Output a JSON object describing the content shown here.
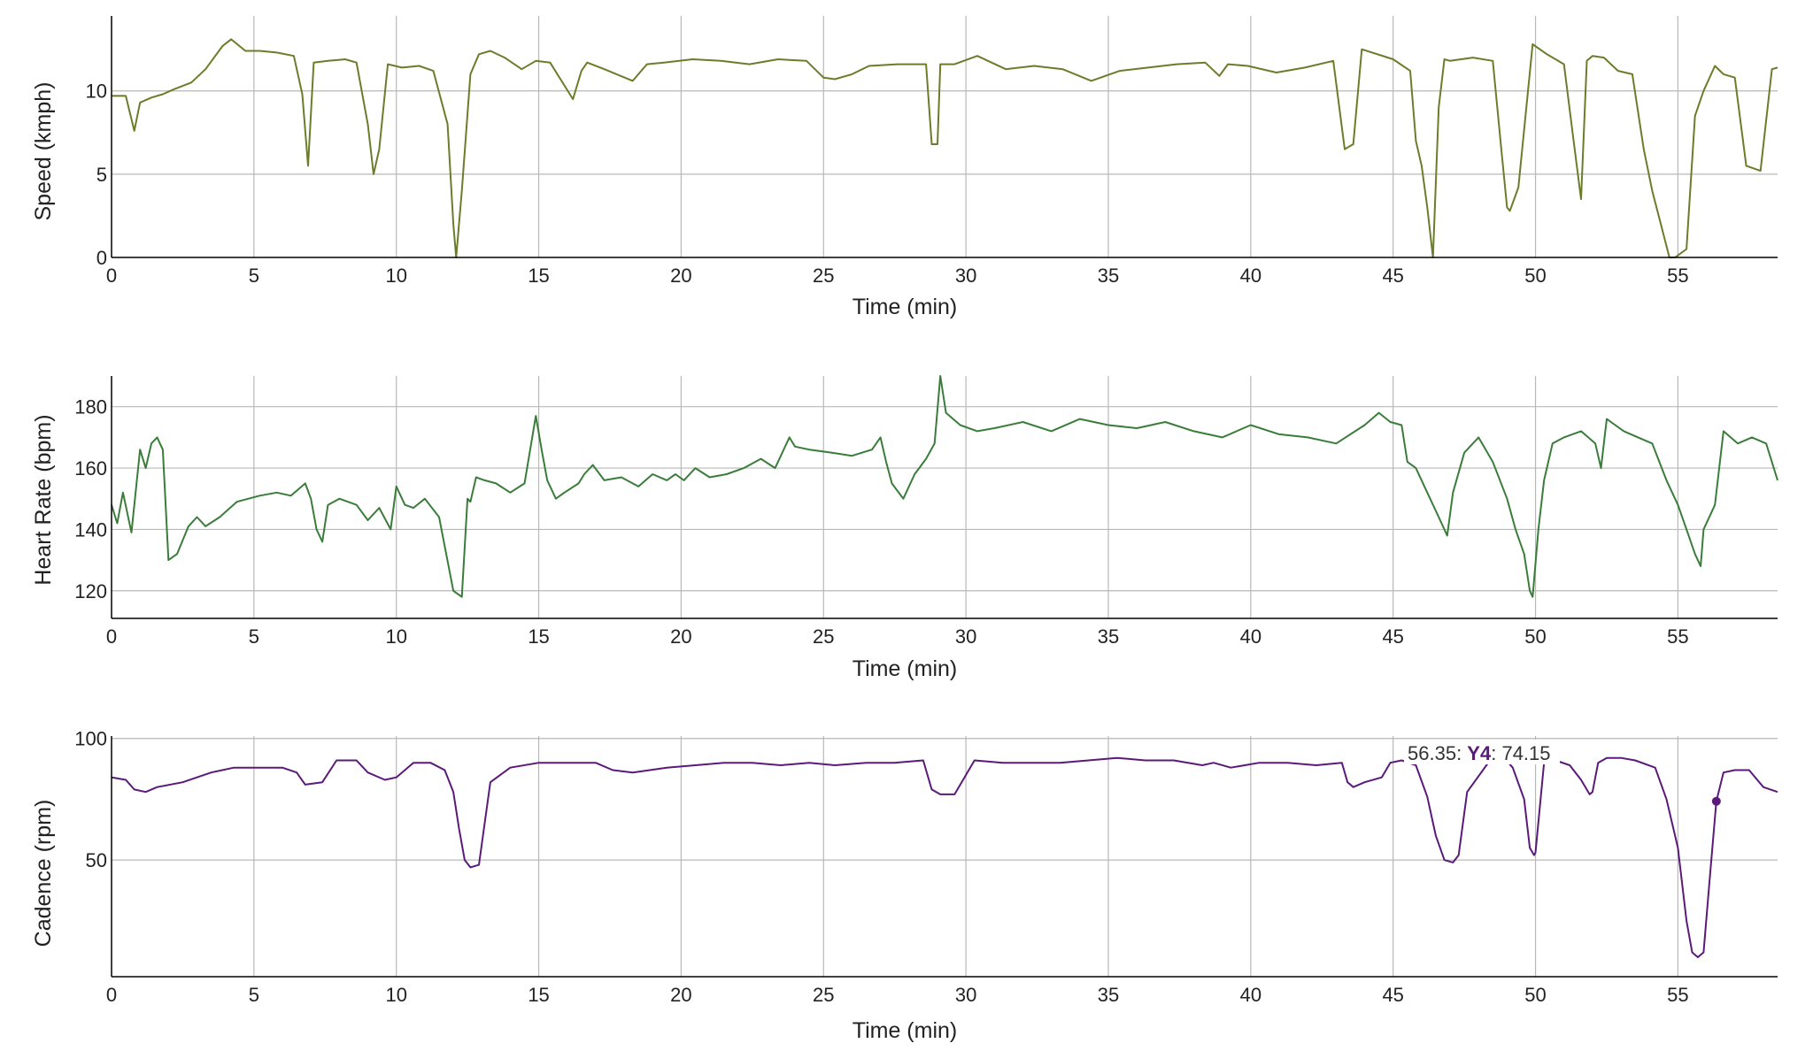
{
  "chart_data": [
    {
      "type": "line",
      "xlabel": "Time (min)",
      "ylabel": "Speed (kmph)",
      "xlim": [
        0,
        58.5
      ],
      "ylim": [
        0,
        14.5
      ],
      "x_ticks": [
        "0",
        "5",
        "10",
        "15",
        "20",
        "25",
        "30",
        "35",
        "40",
        "45",
        "50",
        "55"
      ],
      "y_ticks": [
        {
          "v": 0,
          "label": "0"
        },
        {
          "v": 5,
          "label": "5"
        },
        {
          "v": 10,
          "label": "10"
        }
      ],
      "grid": true,
      "color": "#6b7c2a",
      "series": [
        {
          "x": [
            0,
            0.5,
            0.8,
            1.0,
            1.4,
            1.8,
            2.2,
            2.8,
            3.3,
            3.9,
            4.2,
            4.7,
            5.2,
            5.8,
            6.4,
            6.7,
            6.9,
            7.1,
            7.6,
            8.2,
            8.6,
            9.0,
            9.2,
            9.4,
            9.7,
            10.2,
            10.8,
            11.3,
            11.8,
            12.0,
            12.1,
            12.3,
            12.6,
            12.9,
            13.3,
            13.8,
            14.4,
            14.9,
            15.4,
            16.2,
            16.5,
            16.7,
            17.3,
            18.3,
            18.8,
            19.4,
            20.4,
            21.4,
            22.4,
            23.4,
            24.4,
            25.0,
            25.4,
            26.0,
            26.6,
            27.6,
            28.6,
            28.8,
            29.0,
            29.1,
            29.6,
            30.4,
            31.4,
            32.4,
            33.4,
            34.4,
            35.4,
            36.4,
            37.4,
            38.4,
            38.9,
            39.2,
            39.9,
            40.9,
            41.9,
            42.9,
            43.3,
            43.6,
            43.9,
            45.0,
            45.6,
            45.8,
            46.0,
            46.2,
            46.4,
            46.6,
            46.8,
            47.0,
            47.8,
            48.5,
            48.8,
            49.0,
            49.1,
            49.4,
            49.9,
            50.4,
            51.0,
            51.3,
            51.6,
            51.8,
            52.0,
            52.4,
            52.9,
            53.4,
            53.8,
            54.1,
            54.4,
            54.7,
            54.9,
            55.3,
            55.6,
            55.9,
            56.3,
            56.6,
            57.0,
            57.4,
            57.9,
            58.3,
            58.5
          ],
          "y": [
            9.7,
            9.7,
            7.6,
            9.3,
            9.6,
            9.8,
            10.1,
            10.5,
            11.3,
            12.7,
            13.1,
            12.4,
            12.4,
            12.3,
            12.1,
            9.8,
            5.5,
            11.7,
            11.8,
            11.9,
            11.7,
            8.0,
            5.0,
            6.5,
            11.6,
            11.4,
            11.5,
            11.2,
            8.0,
            2.0,
            0.0,
            4.0,
            11.0,
            12.2,
            12.4,
            12.0,
            11.3,
            11.8,
            11.7,
            9.5,
            11.2,
            11.7,
            11.3,
            10.6,
            11.6,
            11.7,
            11.9,
            11.8,
            11.6,
            11.9,
            11.8,
            10.8,
            10.7,
            11.0,
            11.5,
            11.6,
            11.6,
            6.8,
            6.8,
            11.6,
            11.6,
            12.1,
            11.3,
            11.5,
            11.3,
            10.6,
            11.2,
            11.4,
            11.6,
            11.7,
            10.9,
            11.6,
            11.5,
            11.1,
            11.4,
            11.8,
            6.5,
            6.8,
            12.5,
            11.9,
            11.2,
            7.0,
            5.5,
            3.0,
            0.0,
            9.0,
            11.9,
            11.8,
            12.0,
            11.8,
            6.5,
            3.0,
            2.8,
            4.2,
            12.8,
            12.2,
            11.6,
            7.5,
            3.5,
            11.8,
            12.1,
            12.0,
            11.2,
            11.0,
            6.5,
            4.0,
            2.0,
            0.0,
            0.0,
            0.5,
            8.5,
            10.0,
            11.5,
            11.0,
            10.8,
            5.5,
            5.2,
            11.3,
            11.4
          ]
        }
      ]
    },
    {
      "type": "line",
      "xlabel": "Time (min)",
      "ylabel": "Heart Rate (bpm)",
      "xlim": [
        0,
        58.5
      ],
      "ylim": [
        111,
        190
      ],
      "x_ticks": [
        "0",
        "5",
        "10",
        "15",
        "20",
        "25",
        "30",
        "35",
        "40",
        "45",
        "50",
        "55"
      ],
      "y_ticks": [
        {
          "v": 120,
          "label": "120"
        },
        {
          "v": 140,
          "label": "140"
        },
        {
          "v": 160,
          "label": "160"
        },
        {
          "v": 180,
          "label": "180"
        }
      ],
      "grid": true,
      "color": "#3a7d3a",
      "series": [
        {
          "x": [
            0,
            0.2,
            0.4,
            0.7,
            1.0,
            1.2,
            1.4,
            1.6,
            1.8,
            2.0,
            2.3,
            2.7,
            3.0,
            3.3,
            3.8,
            4.4,
            5.2,
            5.8,
            6.3,
            6.8,
            7.0,
            7.2,
            7.4,
            7.6,
            8.0,
            8.6,
            9.0,
            9.4,
            9.8,
            10.0,
            10.3,
            10.6,
            11.0,
            11.5,
            12.0,
            12.3,
            12.5,
            12.6,
            12.8,
            13.1,
            13.5,
            14.0,
            14.5,
            14.9,
            15.1,
            15.3,
            15.6,
            15.9,
            16.4,
            16.6,
            16.9,
            17.3,
            17.9,
            18.5,
            19.0,
            19.5,
            19.8,
            20.1,
            20.5,
            21.0,
            21.6,
            22.2,
            22.8,
            23.3,
            23.8,
            24.0,
            24.5,
            25.3,
            26.0,
            26.7,
            27.0,
            27.2,
            27.4,
            27.8,
            28.2,
            28.6,
            28.9,
            29.1,
            29.3,
            29.8,
            30.4,
            31.0,
            32.0,
            33.0,
            34.0,
            35.0,
            36.0,
            37.0,
            38.0,
            39.0,
            40.0,
            41.0,
            42.0,
            43.0,
            44.0,
            44.5,
            44.9,
            45.3,
            45.5,
            45.8,
            46.2,
            46.6,
            46.9,
            47.1,
            47.5,
            48.0,
            48.5,
            49.0,
            49.3,
            49.6,
            49.8,
            49.9,
            50.1,
            50.3,
            50.6,
            51.0,
            51.6,
            52.1,
            52.3,
            52.5,
            52.8,
            53.1,
            53.6,
            54.1,
            54.6,
            55.0,
            55.3,
            55.6,
            55.8,
            55.9,
            56.3,
            56.6,
            57.1,
            57.6,
            58.1,
            58.5
          ],
          "y": [
            148,
            142,
            152,
            139,
            166,
            160,
            168,
            170,
            166,
            130,
            132,
            141,
            144,
            141,
            144,
            149,
            151,
            152,
            151,
            155,
            150,
            140,
            136,
            148,
            150,
            148,
            143,
            147,
            140,
            154,
            148,
            147,
            150,
            144,
            120,
            118,
            150,
            149,
            157,
            156,
            155,
            152,
            155,
            177,
            166,
            156,
            150,
            152,
            155,
            158,
            161,
            156,
            157,
            154,
            158,
            156,
            158,
            156,
            160,
            157,
            158,
            160,
            163,
            160,
            170,
            167,
            166,
            165,
            164,
            166,
            170,
            162,
            155,
            150,
            158,
            163,
            168,
            190,
            178,
            174,
            172,
            173,
            175,
            172,
            176,
            174,
            173,
            175,
            172,
            170,
            174,
            171,
            170,
            168,
            174,
            178,
            175,
            174,
            162,
            160,
            152,
            144,
            138,
            152,
            165,
            170,
            162,
            150,
            140,
            132,
            120,
            118,
            140,
            156,
            168,
            170,
            172,
            168,
            160,
            176,
            174,
            172,
            170,
            168,
            156,
            148,
            140,
            132,
            128,
            140,
            148,
            172,
            168,
            170,
            168,
            156
          ]
        }
      ]
    },
    {
      "type": "line",
      "xlabel": "Time (min)",
      "ylabel": "Cadence (rpm)",
      "xlim": [
        0,
        58.5
      ],
      "ylim": [
        2,
        101
      ],
      "x_ticks": [
        "0",
        "5",
        "10",
        "15",
        "20",
        "25",
        "30",
        "35",
        "40",
        "45",
        "50",
        "55"
      ],
      "y_ticks": [
        {
          "v": 50,
          "label": "50"
        },
        {
          "v": 100,
          "label": "100"
        }
      ],
      "grid": true,
      "color": "#5b1a7a",
      "series": [
        {
          "x": [
            0,
            0.5,
            0.8,
            1.2,
            1.6,
            2.5,
            3.5,
            4.3,
            5.0,
            6.0,
            6.5,
            6.8,
            7.4,
            7.9,
            8.6,
            9.0,
            9.6,
            10.0,
            10.6,
            11.2,
            11.7,
            12.0,
            12.2,
            12.4,
            12.6,
            12.9,
            13.3,
            14.0,
            15.0,
            16.0,
            17.0,
            17.6,
            18.3,
            19.5,
            20.5,
            21.5,
            22.5,
            23.5,
            24.5,
            25.4,
            26.5,
            27.5,
            28.5,
            28.8,
            29.1,
            29.6,
            30.3,
            31.3,
            32.3,
            33.3,
            34.3,
            35.3,
            36.3,
            37.3,
            38.3,
            38.7,
            39.3,
            40.3,
            41.3,
            42.3,
            43.2,
            43.4,
            43.6,
            44.0,
            44.6,
            44.9,
            45.3,
            45.8,
            46.2,
            46.5,
            46.8,
            47.1,
            47.3,
            47.6,
            48.4,
            48.9,
            49.2,
            49.6,
            49.8,
            49.95,
            50.0,
            50.3,
            50.7,
            51.2,
            51.6,
            51.9,
            52.0,
            52.2,
            52.5,
            53.0,
            53.5,
            54.2,
            54.6,
            55.0,
            55.3,
            55.5,
            55.7,
            55.9,
            56.1,
            56.35,
            56.6,
            57.0,
            57.5,
            58.0,
            58.5
          ],
          "y": [
            84,
            83,
            79,
            78,
            80,
            82,
            86,
            88,
            88,
            88,
            86,
            81,
            82,
            91,
            91,
            86,
            83,
            84,
            90,
            90,
            87,
            78,
            63,
            50,
            47,
            48,
            82,
            88,
            90,
            90,
            90,
            87,
            86,
            88,
            89,
            90,
            90,
            89,
            90,
            89,
            90,
            90,
            91,
            79,
            77,
            77,
            91,
            90,
            90,
            90,
            91,
            92,
            91,
            91,
            89,
            90,
            88,
            90,
            90,
            89,
            90,
            82,
            80,
            82,
            84,
            90,
            91,
            89,
            76,
            60,
            50,
            49,
            52,
            78,
            91,
            92,
            88,
            75,
            55,
            52,
            53,
            90,
            91,
            89,
            83,
            77,
            78,
            90,
            92,
            92,
            91,
            88,
            75,
            55,
            25,
            12,
            10,
            12,
            40,
            74.15,
            86,
            87,
            87,
            80,
            78
          ]
        }
      ],
      "hover": {
        "x_text": "56.35",
        "series_label": "Y4",
        "y_text": "74.15",
        "x": 56.35,
        "y": 74.15
      }
    }
  ]
}
